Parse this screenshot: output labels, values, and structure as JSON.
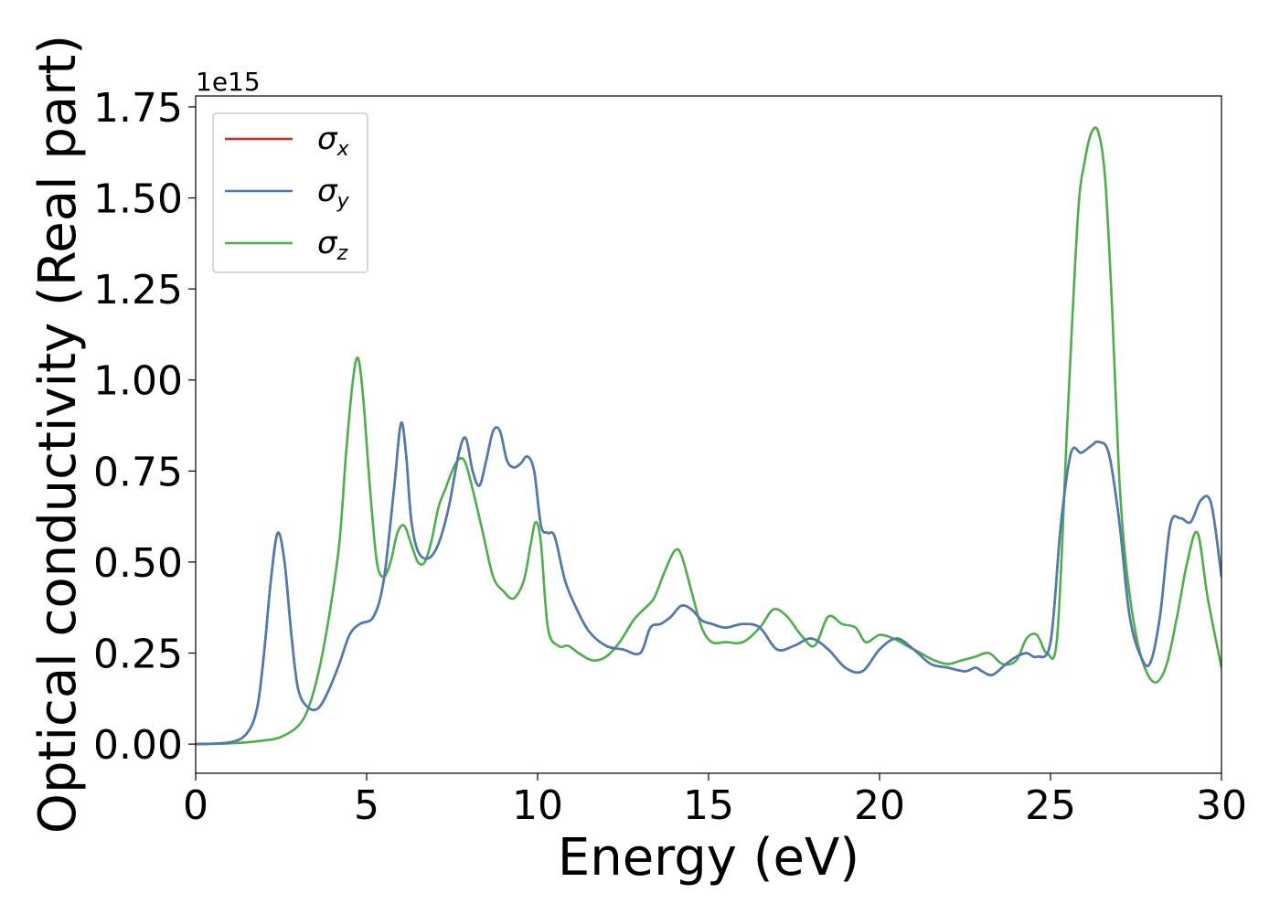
{
  "chart_data": {
    "type": "line",
    "xlabel": "Energy (eV)",
    "ylabel": "Optical conductivity (Real part)",
    "y_offset_label": "1e15",
    "xlim": [
      0,
      30
    ],
    "ylim": [
      -0.08,
      1.78
    ],
    "x_ticks": [
      0,
      5,
      10,
      15,
      20,
      25,
      30
    ],
    "x_tick_labels": [
      "0",
      "5",
      "10",
      "15",
      "20",
      "25",
      "30"
    ],
    "y_ticks": [
      0.0,
      0.25,
      0.5,
      0.75,
      1.0,
      1.25,
      1.5,
      1.75
    ],
    "y_tick_labels": [
      "0.00",
      "0.25",
      "0.50",
      "0.75",
      "1.00",
      "1.25",
      "1.50",
      "1.75"
    ],
    "grid": false,
    "legend_position": "top-left",
    "series": [
      {
        "name": "σ",
        "subscript": "x",
        "color": "#d62728",
        "x": [
          0,
          1,
          1.5,
          1.8,
          2.0,
          2.2,
          2.4,
          2.6,
          2.8,
          3.0,
          3.3,
          3.6,
          3.9,
          4.2,
          4.5,
          4.8,
          5.2,
          5.5,
          5.8,
          6.0,
          6.15,
          6.3,
          6.5,
          6.8,
          7.1,
          7.4,
          7.7,
          7.9,
          8.1,
          8.3,
          8.5,
          8.7,
          8.9,
          9.1,
          9.3,
          9.5,
          9.7,
          9.9,
          10.1,
          10.3,
          10.5,
          10.8,
          11.1,
          11.5,
          12.0,
          12.5,
          13.0,
          13.3,
          13.6,
          13.9,
          14.2,
          14.5,
          14.8,
          15.1,
          15.5,
          16.0,
          16.5,
          17.0,
          17.5,
          18.0,
          18.5,
          19.0,
          19.5,
          20.0,
          20.5,
          21.0,
          21.5,
          22.0,
          22.5,
          22.8,
          23.0,
          23.3,
          23.7,
          24.0,
          24.3,
          24.6,
          25.0,
          25.3,
          25.6,
          25.9,
          26.2,
          26.4,
          26.7,
          27.0,
          27.3,
          27.6,
          27.9,
          28.2,
          28.5,
          28.8,
          29.1,
          29.4,
          29.7,
          30.0
        ],
        "y": [
          0.0,
          0.005,
          0.03,
          0.1,
          0.25,
          0.45,
          0.58,
          0.5,
          0.3,
          0.15,
          0.1,
          0.1,
          0.15,
          0.22,
          0.3,
          0.33,
          0.35,
          0.45,
          0.7,
          0.88,
          0.8,
          0.62,
          0.53,
          0.51,
          0.55,
          0.65,
          0.8,
          0.84,
          0.75,
          0.71,
          0.78,
          0.86,
          0.86,
          0.78,
          0.76,
          0.77,
          0.79,
          0.75,
          0.6,
          0.58,
          0.57,
          0.45,
          0.38,
          0.31,
          0.27,
          0.26,
          0.25,
          0.32,
          0.33,
          0.35,
          0.38,
          0.37,
          0.34,
          0.33,
          0.32,
          0.33,
          0.32,
          0.26,
          0.27,
          0.29,
          0.26,
          0.21,
          0.2,
          0.26,
          0.29,
          0.26,
          0.22,
          0.21,
          0.2,
          0.21,
          0.2,
          0.19,
          0.22,
          0.24,
          0.25,
          0.24,
          0.28,
          0.6,
          0.8,
          0.8,
          0.82,
          0.83,
          0.8,
          0.62,
          0.36,
          0.25,
          0.22,
          0.35,
          0.6,
          0.62,
          0.61,
          0.67,
          0.66,
          0.46
        ]
      },
      {
        "name": "σ",
        "subscript": "y",
        "color": "#4a7db5",
        "x": [
          0,
          1,
          1.5,
          1.8,
          2.0,
          2.2,
          2.4,
          2.6,
          2.8,
          3.0,
          3.3,
          3.6,
          3.9,
          4.2,
          4.5,
          4.8,
          5.2,
          5.5,
          5.8,
          6.0,
          6.15,
          6.3,
          6.5,
          6.8,
          7.1,
          7.4,
          7.7,
          7.9,
          8.1,
          8.3,
          8.5,
          8.7,
          8.9,
          9.1,
          9.3,
          9.5,
          9.7,
          9.9,
          10.1,
          10.3,
          10.5,
          10.8,
          11.1,
          11.5,
          12.0,
          12.5,
          13.0,
          13.3,
          13.6,
          13.9,
          14.2,
          14.5,
          14.8,
          15.1,
          15.5,
          16.0,
          16.5,
          17.0,
          17.5,
          18.0,
          18.5,
          19.0,
          19.5,
          20.0,
          20.5,
          21.0,
          21.5,
          22.0,
          22.5,
          22.8,
          23.0,
          23.3,
          23.7,
          24.0,
          24.3,
          24.6,
          25.0,
          25.3,
          25.6,
          25.9,
          26.2,
          26.4,
          26.7,
          27.0,
          27.3,
          27.6,
          27.9,
          28.2,
          28.5,
          28.8,
          29.1,
          29.4,
          29.7,
          30.0
        ],
        "y": [
          0.0,
          0.005,
          0.03,
          0.1,
          0.25,
          0.45,
          0.58,
          0.5,
          0.3,
          0.15,
          0.1,
          0.1,
          0.15,
          0.22,
          0.3,
          0.33,
          0.35,
          0.45,
          0.7,
          0.88,
          0.8,
          0.62,
          0.53,
          0.51,
          0.55,
          0.65,
          0.8,
          0.84,
          0.75,
          0.71,
          0.78,
          0.86,
          0.86,
          0.78,
          0.76,
          0.77,
          0.79,
          0.75,
          0.6,
          0.58,
          0.57,
          0.45,
          0.38,
          0.31,
          0.27,
          0.26,
          0.25,
          0.32,
          0.33,
          0.35,
          0.38,
          0.37,
          0.34,
          0.33,
          0.32,
          0.33,
          0.32,
          0.26,
          0.27,
          0.29,
          0.26,
          0.21,
          0.2,
          0.26,
          0.29,
          0.26,
          0.22,
          0.21,
          0.2,
          0.21,
          0.2,
          0.19,
          0.22,
          0.24,
          0.25,
          0.24,
          0.28,
          0.6,
          0.8,
          0.8,
          0.82,
          0.83,
          0.8,
          0.62,
          0.36,
          0.25,
          0.22,
          0.35,
          0.6,
          0.62,
          0.61,
          0.67,
          0.66,
          0.46
        ]
      },
      {
        "name": "σ",
        "subscript": "z",
        "color": "#4daf4a",
        "x": [
          0,
          1,
          2,
          2.5,
          3.0,
          3.3,
          3.6,
          3.9,
          4.2,
          4.4,
          4.6,
          4.75,
          4.9,
          5.1,
          5.3,
          5.5,
          5.7,
          5.9,
          6.1,
          6.3,
          6.5,
          6.7,
          6.9,
          7.1,
          7.3,
          7.6,
          7.85,
          8.1,
          8.4,
          8.7,
          9.0,
          9.3,
          9.6,
          9.8,
          9.95,
          10.1,
          10.3,
          10.6,
          10.9,
          11.2,
          11.6,
          12.0,
          12.4,
          12.8,
          13.1,
          13.4,
          13.7,
          14.0,
          14.2,
          14.5,
          14.8,
          15.1,
          15.5,
          16.0,
          16.5,
          16.9,
          17.3,
          17.7,
          18.1,
          18.5,
          18.9,
          19.3,
          19.6,
          20.0,
          20.4,
          20.8,
          21.2,
          21.6,
          22.0,
          22.4,
          22.8,
          23.2,
          23.6,
          24.0,
          24.3,
          24.6,
          24.9,
          25.2,
          25.5,
          25.8,
          26.0,
          26.2,
          26.4,
          26.6,
          26.8,
          27.0,
          27.2,
          27.5,
          27.8,
          28.1,
          28.4,
          28.7,
          29.0,
          29.3,
          29.6,
          30.0
        ],
        "y": [
          0.0,
          0.002,
          0.01,
          0.02,
          0.05,
          0.1,
          0.2,
          0.35,
          0.55,
          0.8,
          1.0,
          1.06,
          0.95,
          0.7,
          0.5,
          0.46,
          0.5,
          0.58,
          0.6,
          0.55,
          0.5,
          0.5,
          0.56,
          0.65,
          0.7,
          0.77,
          0.78,
          0.7,
          0.58,
          0.46,
          0.42,
          0.4,
          0.45,
          0.55,
          0.61,
          0.55,
          0.32,
          0.27,
          0.27,
          0.25,
          0.23,
          0.24,
          0.28,
          0.34,
          0.37,
          0.4,
          0.47,
          0.53,
          0.52,
          0.42,
          0.32,
          0.28,
          0.28,
          0.28,
          0.32,
          0.37,
          0.35,
          0.3,
          0.27,
          0.35,
          0.33,
          0.32,
          0.28,
          0.3,
          0.29,
          0.27,
          0.25,
          0.23,
          0.22,
          0.23,
          0.24,
          0.25,
          0.22,
          0.23,
          0.29,
          0.3,
          0.25,
          0.3,
          0.9,
          1.45,
          1.6,
          1.68,
          1.68,
          1.55,
          1.2,
          0.75,
          0.5,
          0.3,
          0.2,
          0.17,
          0.22,
          0.35,
          0.5,
          0.58,
          0.4,
          0.21
        ]
      }
    ]
  }
}
